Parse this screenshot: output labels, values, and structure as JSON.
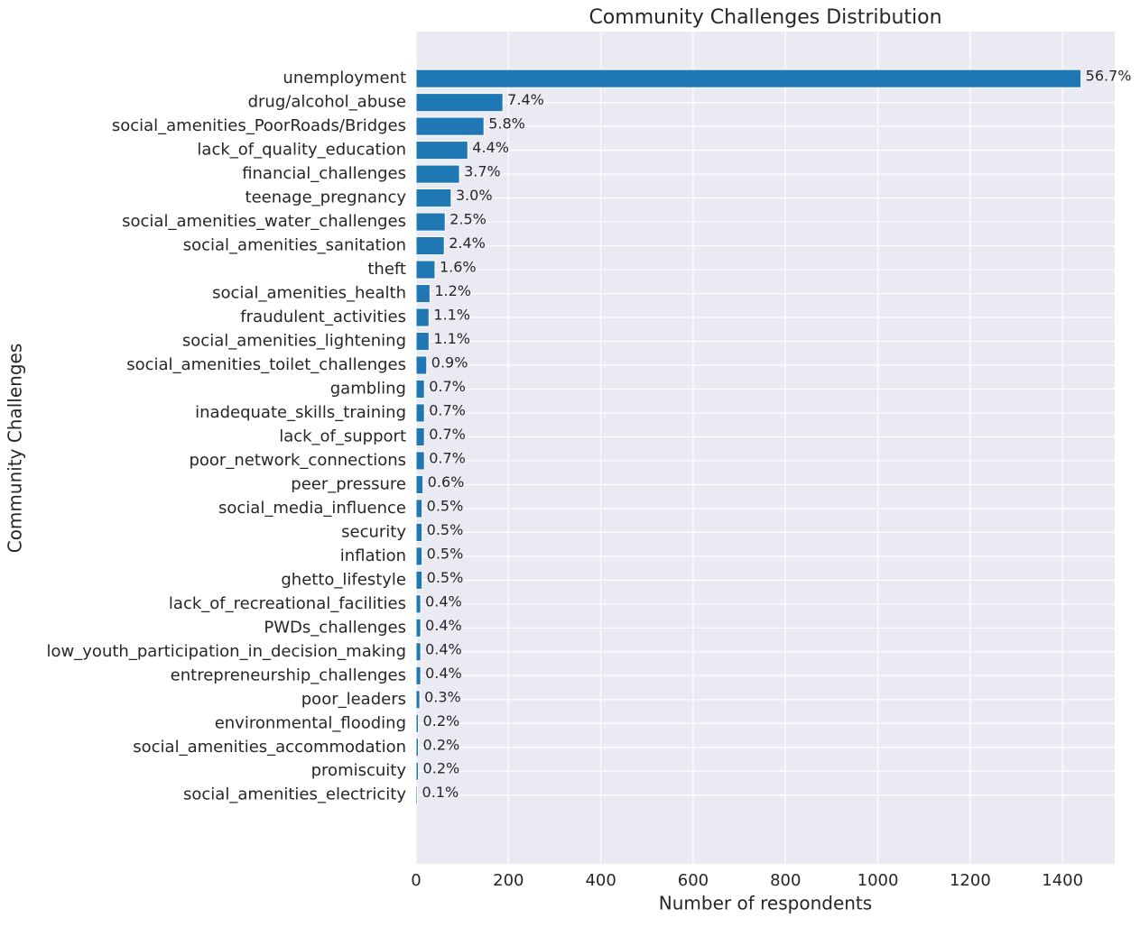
{
  "chart_data": {
    "type": "barh",
    "title": "Community Challenges Distribution",
    "xlabel": "Number of respondents",
    "ylabel": "Community Challenges",
    "categories": [
      "unemployment",
      "drug/alcohol_abuse",
      "social_amenities_PoorRoads/Bridges",
      "lack_of_quality_education",
      "financial_challenges",
      "teenage_pregnancy",
      "social_amenities_water_challenges",
      "social_amenities_sanitation",
      "theft",
      "social_amenities_health",
      "fraudulent_activities",
      "social_amenities_lightening",
      "social_amenities_toilet_challenges",
      "gambling",
      "inadequate_skills_training",
      "lack_of_support",
      "poor_network_connections",
      "peer_pressure",
      "social_media_influence",
      "security",
      "inflation",
      "ghetto_lifestyle",
      "lack_of_recreational_facilities",
      "PWDs_challenges",
      "low_youth_participation_in_decision_making",
      "entrepreneurship_challenges",
      "poor_leaders",
      "environmental_flooding",
      "social_amenities_accommodation",
      "promiscuity",
      "social_amenities_electricity"
    ],
    "values": [
      1440,
      188,
      147,
      112,
      94,
      76,
      63,
      61,
      41,
      30,
      28,
      28,
      23,
      18,
      18,
      18,
      18,
      15,
      13,
      13,
      13,
      13,
      10,
      10,
      10,
      10,
      8,
      5,
      5,
      5,
      3
    ],
    "value_labels": [
      "56.7%",
      "7.4%",
      "5.8%",
      "4.4%",
      "3.7%",
      "3.0%",
      "2.5%",
      "2.4%",
      "1.6%",
      "1.2%",
      "1.1%",
      "1.1%",
      "0.9%",
      "0.7%",
      "0.7%",
      "0.7%",
      "0.7%",
      "0.6%",
      "0.5%",
      "0.5%",
      "0.5%",
      "0.5%",
      "0.4%",
      "0.4%",
      "0.4%",
      "0.4%",
      "0.3%",
      "0.2%",
      "0.2%",
      "0.2%",
      "0.1%"
    ],
    "color": "#1f77b4",
    "xlim": [
      0,
      1513
    ],
    "xticks": [
      0,
      200,
      400,
      600,
      800,
      1000,
      1200,
      1400
    ],
    "grid": true
  }
}
